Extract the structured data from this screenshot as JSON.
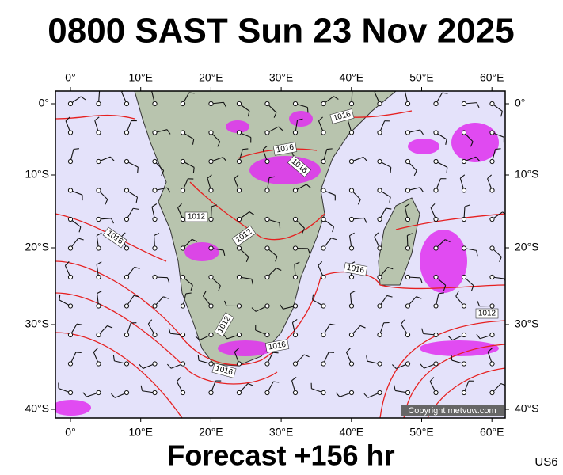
{
  "header": {
    "title": "0800 SAST Sun 23 Nov 2025"
  },
  "map": {
    "lon_labels": [
      "0°",
      "10°E",
      "20°E",
      "30°E",
      "40°E",
      "50°E",
      "60°E"
    ],
    "lat_labels": [
      "0°",
      "10°S",
      "20°S",
      "30°S",
      "40°S"
    ],
    "isobar_labels": [
      "1016",
      "1016",
      "1016",
      "1012",
      "1012",
      "1016",
      "1016",
      "1012",
      "1012",
      "1016",
      "1016"
    ],
    "copyright": "Copyright metvuw.com"
  },
  "footer": {
    "forecast": "Forecast +156 hr",
    "code": "US6"
  }
}
